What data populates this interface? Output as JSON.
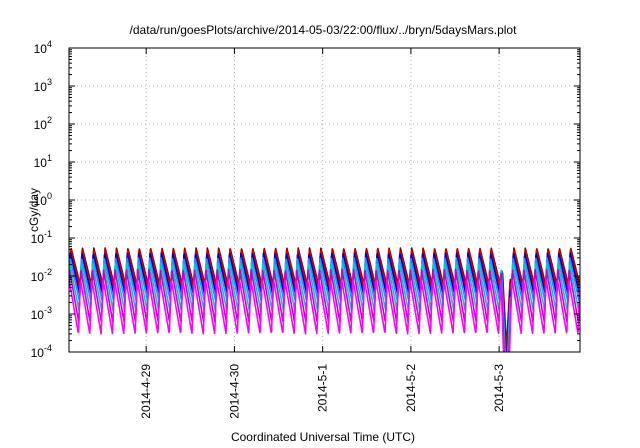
{
  "chart_data": {
    "type": "line",
    "title": "/data/run/goesPlots/archive/2014-05-03/22:00/flux/../bryn/5daysMars.plot",
    "xlabel": "Coordinated Universal Time (UTC)",
    "ylabel": "cGy/day",
    "yscale": "log",
    "ylim": [
      0.0001,
      10000
    ],
    "xlim": [
      "2014-04-28T03:00",
      "2014-05-03T22:00"
    ],
    "grid": true,
    "legend": "none",
    "y_ticks": [
      {
        "base": "10",
        "exp": "-4"
      },
      {
        "base": "10",
        "exp": "-3"
      },
      {
        "base": "10",
        "exp": "-2"
      },
      {
        "base": "10",
        "exp": "-1"
      },
      {
        "base": "10",
        "exp": "0"
      },
      {
        "base": "10",
        "exp": "1"
      },
      {
        "base": "10",
        "exp": "2"
      },
      {
        "base": "10",
        "exp": "3"
      },
      {
        "base": "10",
        "exp": "4"
      }
    ],
    "x_ticks": [
      {
        "label": "2014-4-29",
        "date": "2014-04-29T00:00"
      },
      {
        "label": "2014-4-30",
        "date": "2014-04-30T00:00"
      },
      {
        "label": "2014-5-1",
        "date": "2014-05-01T00:00"
      },
      {
        "label": "2014-5-2",
        "date": "2014-05-02T00:00"
      },
      {
        "label": "2014-5-3",
        "date": "2014-05-03T00:00"
      }
    ],
    "pattern": {
      "cycles": 45,
      "peak": [
        0.055,
        0.048,
        0.04,
        0.03,
        0.022,
        0.015,
        0.008
      ],
      "trough": [
        0.0055,
        0.0045,
        0.0033,
        0.0022,
        0.0012,
        0.0006,
        0.0003
      ],
      "dropout": {
        "start": "2014-05-03T00:30",
        "min_time": "2014-05-03T02:00",
        "recover": "2014-05-03T03:00"
      }
    },
    "series": [
      {
        "color": "#8b0000",
        "phase": 0.0
      },
      {
        "color": "#d40000",
        "phase": 0.02
      },
      {
        "color": "#0000cd",
        "phase": 0.05
      },
      {
        "color": "#1e90ff",
        "phase": 0.08
      },
      {
        "color": "#00c8c8",
        "phase": 0.11
      },
      {
        "color": "#c800c8",
        "phase": 0.14
      },
      {
        "color": "#ff00ff",
        "phase": 0.17
      }
    ]
  }
}
